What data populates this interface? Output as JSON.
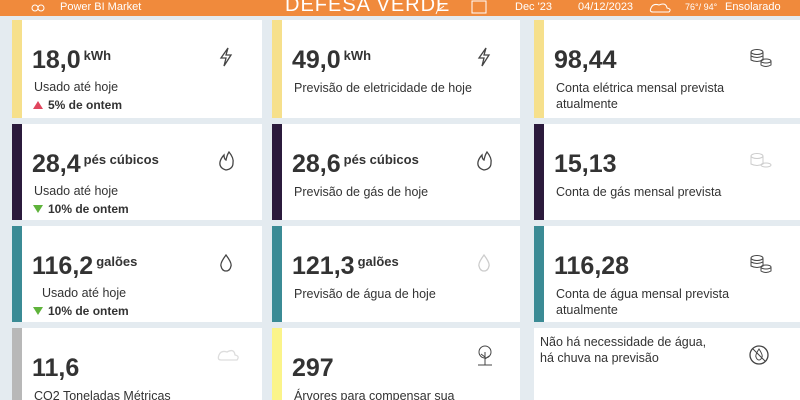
{
  "header": {
    "brand": "Power BI Market",
    "title": "DEFESA VERDE",
    "month": "Dec '23",
    "date": "04/12/2023",
    "temperature": "76°/ 94°",
    "weather": "Ensolarado"
  },
  "cards": [
    [
      {
        "value": "18,0",
        "unit": "kWh",
        "label": "Usado até hoje",
        "change": "5% de ontem",
        "trend": "up",
        "accent": "#f6e08c"
      },
      {
        "value": "49,0",
        "unit": "kWh",
        "label": "Previsão de eletricidade de hoje",
        "accent": "#f6e08c"
      },
      {
        "value": "98,44",
        "label": "Conta elétrica mensal prevista atualmente",
        "accent": "#f6e08c"
      }
    ],
    [
      {
        "value": "28,4",
        "unit": "pés cúbicos",
        "label": "Usado até hoje",
        "change": "10% de ontem",
        "trend": "down",
        "accent": "#2b1a3c"
      },
      {
        "value": "28,6",
        "unit": "pés cúbicos",
        "label": "Previsão de gás de hoje",
        "accent": "#2b1a3c"
      },
      {
        "value": "15,13",
        "label": "Conta de gás mensal prevista",
        "accent": "#2b1a3c"
      }
    ],
    [
      {
        "value": "116,2",
        "unit": "galões",
        "label": "Usado até hoje",
        "change": "10% de ontem",
        "trend": "down",
        "accent": "#3b8b95"
      },
      {
        "value": "121,3",
        "unit": "galões",
        "label": "Previsão de água de hoje",
        "accent": "#3b8b95"
      },
      {
        "value": "116,28",
        "label": "Conta de água mensal prevista atualmente",
        "accent": "#3b8b95"
      }
    ],
    [
      {
        "value": "11,6",
        "label": "CO2 Toneladas Métricas",
        "accent": "#b8b8b8"
      },
      {
        "value": "297",
        "label": "Árvores para compensar sua",
        "accent": "#fbf48a"
      },
      {
        "label": "Não há necessidade de água, há chuva na previsão"
      }
    ]
  ]
}
